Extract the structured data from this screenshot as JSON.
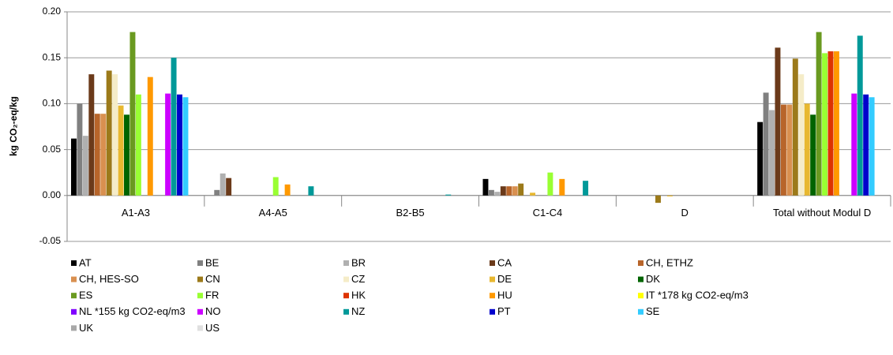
{
  "chart_data": {
    "type": "bar",
    "y_label": "kg CO₂-eq/kg",
    "categories": [
      "A1-A3",
      "A4-A5",
      "B2-B5",
      "C1-C4",
      "D",
      "Total without Modul D"
    ],
    "ylim": [
      -0.05,
      0.2
    ],
    "yticks": [
      -0.05,
      {
        "value": 0,
        "label": "0.00"
      },
      0.05,
      {
        "value": 0.1,
        "label": "0.10"
      },
      0.15,
      {
        "value": 0.2,
        "label": "0.20"
      }
    ],
    "grid": true,
    "legend": "bottom",
    "series": [
      {
        "name": "AT",
        "color": "#000000",
        "values": [
          0.062,
          0,
          0,
          0.018,
          0,
          0.08
        ]
      },
      {
        "name": "BE",
        "color": "#808080",
        "values": [
          0.1,
          0.006,
          0,
          0.006,
          0,
          0.112
        ]
      },
      {
        "name": "BR",
        "color": "#b0b0b0",
        "values": [
          0.065,
          0.024,
          0,
          0.004,
          0,
          0.093
        ]
      },
      {
        "name": "CA",
        "color": "#6b3a1a",
        "values": [
          0.132,
          0.019,
          0,
          0.01,
          0,
          0.161
        ]
      },
      {
        "name": "CH, ETHZ",
        "color": "#b8652a",
        "values": [
          0.089,
          0,
          0,
          0.01,
          0,
          0.099
        ]
      },
      {
        "name": "CH, HES-SO",
        "color": "#d99050",
        "values": [
          0.089,
          0,
          0,
          0.01,
          0,
          0.099
        ]
      },
      {
        "name": "CN",
        "color": "#9c7a1a",
        "values": [
          0.136,
          0,
          0,
          0.013,
          -0.008,
          0.149
        ]
      },
      {
        "name": "CZ",
        "color": "#f5ecc8",
        "values": [
          0.132,
          0,
          0,
          0,
          0,
          0.132
        ]
      },
      {
        "name": "DE",
        "color": "#e8b830",
        "values": [
          0.098,
          0,
          0,
          0.003,
          -0.001,
          0.1
        ]
      },
      {
        "name": "DK",
        "color": "#006400",
        "values": [
          0.088,
          0,
          0,
          0,
          0,
          0.088
        ]
      },
      {
        "name": "ES",
        "color": "#6a9a20",
        "values": [
          0.178,
          0,
          0,
          0,
          0,
          0.178
        ]
      },
      {
        "name": "FR",
        "color": "#99ff33",
        "values": [
          0.11,
          0.02,
          0,
          0.025,
          0,
          0.155
        ]
      },
      {
        "name": "HK",
        "color": "#dd3300",
        "values": [
          0,
          0,
          0,
          0,
          0,
          0.157
        ]
      },
      {
        "name": "HU",
        "color": "#ff9900",
        "values": [
          0.129,
          0.012,
          0,
          0.018,
          0,
          0.157
        ]
      },
      {
        "name": "IT *178 kg CO2-eq/m3",
        "color": "#ffff00",
        "values": [
          0,
          0,
          0,
          0,
          0,
          0
        ]
      },
      {
        "name": "NL *155 kg CO2-eq/m3",
        "color": "#7f00ff",
        "values": [
          0,
          0,
          0,
          0,
          0,
          0
        ]
      },
      {
        "name": "NO",
        "color": "#cc00ff",
        "values": [
          0.111,
          0,
          0,
          0,
          0,
          0.111
        ]
      },
      {
        "name": "NZ",
        "color": "#009999",
        "values": [
          0.15,
          0.01,
          0.001,
          0.016,
          0,
          0.174
        ]
      },
      {
        "name": "PT",
        "color": "#0000cc",
        "values": [
          0.11,
          0,
          0,
          0,
          0,
          0.11
        ]
      },
      {
        "name": "SE",
        "color": "#33ccff",
        "values": [
          0.107,
          0,
          0,
          0,
          0,
          0.107
        ]
      },
      {
        "name": "UK",
        "color": "#a8a8a8",
        "values": [
          0,
          0,
          0,
          0,
          0,
          0
        ]
      },
      {
        "name": "US",
        "color": "#e0e0e0",
        "values": [
          0,
          0,
          0,
          0,
          0,
          0
        ]
      }
    ]
  }
}
